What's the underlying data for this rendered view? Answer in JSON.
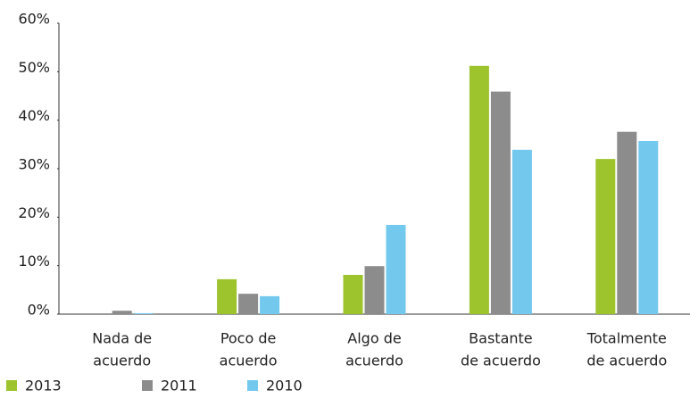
{
  "chart_data": {
    "type": "bar",
    "categories": [
      [
        "Nada de",
        "acuerdo"
      ],
      [
        "Poco de",
        "acuerdo"
      ],
      [
        "Algo de",
        "acuerdo"
      ],
      [
        "Bastante",
        "de acuerdo"
      ],
      [
        "Totalmente",
        "de acuerdo"
      ]
    ],
    "series": [
      {
        "name": "2013",
        "color": "#9dc32d",
        "values": [
          0,
          7.2,
          8.1,
          51.2,
          32.0
        ]
      },
      {
        "name": "2011",
        "color": "#8c8c8c",
        "values": [
          0.7,
          4.2,
          9.9,
          45.9,
          37.6
        ]
      },
      {
        "name": "2010",
        "color": "#73c8ee",
        "values": [
          0.2,
          3.7,
          18.4,
          33.9,
          35.7
        ]
      }
    ],
    "ylim": [
      0,
      60
    ],
    "yticks": [
      {
        "value": 0,
        "label": "0%"
      },
      {
        "value": 10,
        "label": "10%"
      },
      {
        "value": 20,
        "label": "20%"
      },
      {
        "value": 30,
        "label": "30%"
      },
      {
        "value": 40,
        "label": "40%"
      },
      {
        "value": 50,
        "label": "50%"
      },
      {
        "value": 60,
        "label": "60%"
      }
    ],
    "grid": false
  }
}
